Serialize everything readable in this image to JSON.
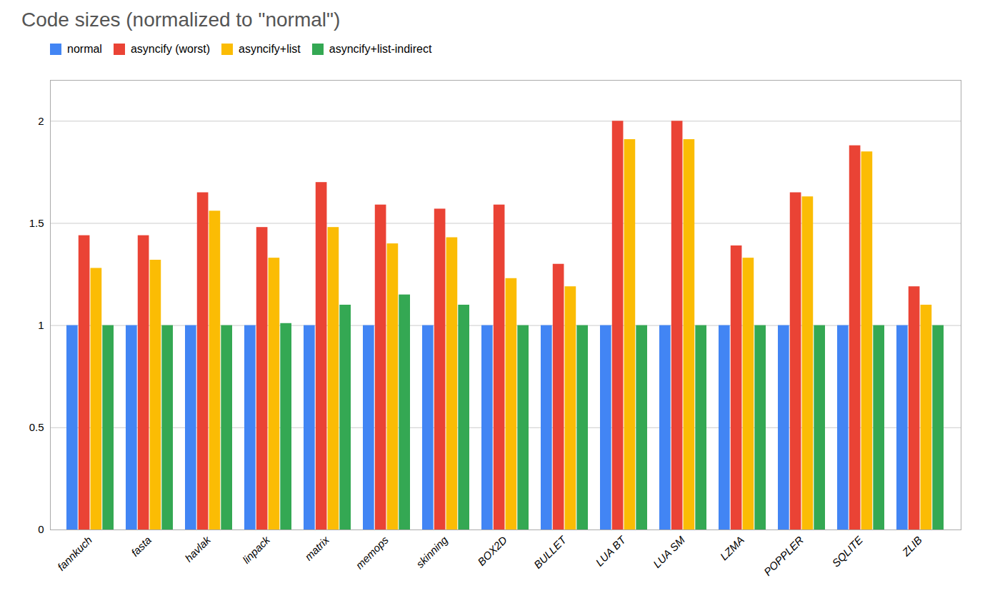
{
  "chart_data": {
    "type": "bar",
    "title": "Code sizes (normalized to \"normal\")",
    "categories": [
      "fannkuch",
      "fasta",
      "havlak",
      "linpack",
      "matrix",
      "memops",
      "skinning",
      "BOX2D",
      "BULLET",
      "LUA BT",
      "LUA SM",
      "LZMA",
      "POPPLER",
      "SQLITE",
      "ZLIB"
    ],
    "series": [
      {
        "name": "normal",
        "color": "#4285F4",
        "values": [
          1.0,
          1.0,
          1.0,
          1.0,
          1.0,
          1.0,
          1.0,
          1.0,
          1.0,
          1.0,
          1.0,
          1.0,
          1.0,
          1.0,
          1.0
        ]
      },
      {
        "name": "asyncify (worst)",
        "color": "#EA4335",
        "values": [
          1.44,
          1.44,
          1.65,
          1.48,
          1.7,
          1.59,
          1.57,
          1.59,
          1.3,
          2.0,
          2.0,
          1.39,
          1.65,
          1.88,
          1.19
        ]
      },
      {
        "name": "asyncify+list",
        "color": "#FBBC04",
        "values": [
          1.28,
          1.32,
          1.56,
          1.33,
          1.48,
          1.4,
          1.43,
          1.23,
          1.19,
          1.91,
          1.91,
          1.33,
          1.63,
          1.85,
          1.1
        ]
      },
      {
        "name": "asyncify+list-indirect",
        "color": "#34A853",
        "values": [
          1.0,
          1.0,
          1.0,
          1.01,
          1.1,
          1.15,
          1.1,
          1.0,
          1.0,
          1.0,
          1.0,
          1.0,
          1.0,
          1.0,
          1.0
        ]
      }
    ],
    "ylim": [
      0,
      2.2
    ],
    "yticks": [
      0,
      0.5,
      1,
      1.5,
      2
    ],
    "grid": true,
    "legend": "upper left"
  }
}
